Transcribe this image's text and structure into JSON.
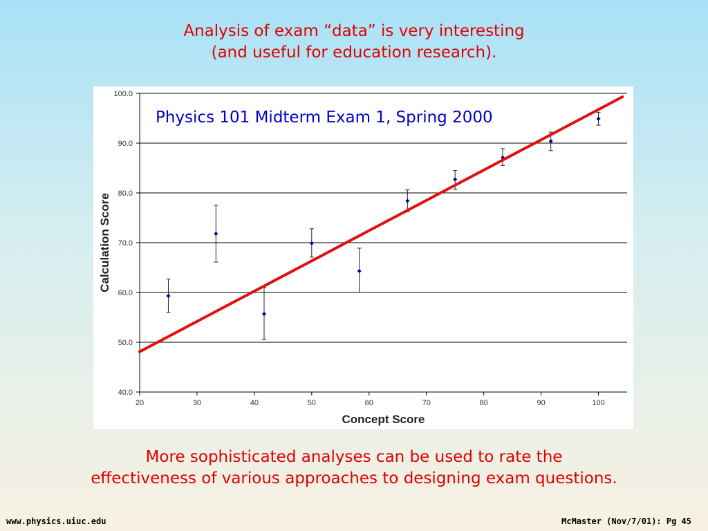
{
  "slide": {
    "title_line1": "Analysis of exam “data” is very interesting",
    "title_line2": "(and useful for education research).",
    "footnote_line1": "More sophisticated analyses can be used to rate the",
    "footnote_line2": "effectiveness of various approaches to designing exam questions.",
    "footer_left": "www.physics.uiuc.edu",
    "footer_right": "McMaster (Nov/7/01): Pg 45"
  },
  "colors": {
    "text_accent": "#e00000",
    "chart_title": "#0000cc",
    "fit_line": "#e01010",
    "points": "#00008b",
    "gridline": "#000000",
    "background_top": "#a9e1f7",
    "background_bottom": "#f8f1e2"
  },
  "chart_data": {
    "type": "scatter",
    "title": "Physics 101 Midterm Exam 1, Spring 2000",
    "xlabel": "Concept Score",
    "ylabel": "Calculation Score",
    "xlim": [
      20,
      105
    ],
    "ylim": [
      40,
      100
    ],
    "xticks": [
      "20",
      "30",
      "40",
      "50",
      "60",
      "70",
      "80",
      "90",
      "100"
    ],
    "yticks": [
      "40.0",
      "50.0",
      "60.0",
      "70.0",
      "80.0",
      "90.0",
      "100.0"
    ],
    "grid": "horizontal",
    "points": [
      {
        "x": 25,
        "y": 59.3,
        "err_low": 3.3,
        "err_high": 3.4
      },
      {
        "x": 33.3,
        "y": 71.8,
        "err_low": 5.7,
        "err_high": 5.7
      },
      {
        "x": 41.7,
        "y": 55.7,
        "err_low": 5.2,
        "err_high": 5.3
      },
      {
        "x": 50,
        "y": 69.9,
        "err_low": 2.8,
        "err_high": 2.9
      },
      {
        "x": 58.3,
        "y": 64.3,
        "err_low": 4.3,
        "err_high": 4.6
      },
      {
        "x": 66.7,
        "y": 78.4,
        "err_low": 2.2,
        "err_high": 2.2
      },
      {
        "x": 75,
        "y": 82.7,
        "err_low": 2,
        "err_high": 1.8
      },
      {
        "x": 83.3,
        "y": 87.1,
        "err_low": 1.6,
        "err_high": 1.8
      },
      {
        "x": 91.7,
        "y": 90.4,
        "err_low": 1.9,
        "err_high": 1.8
      },
      {
        "x": 100,
        "y": 94.9,
        "err_low": 1.3,
        "err_high": 1.3
      }
    ],
    "fit_line": {
      "x": [
        20,
        104.2
      ],
      "y": [
        48.1,
        99.3
      ]
    }
  }
}
